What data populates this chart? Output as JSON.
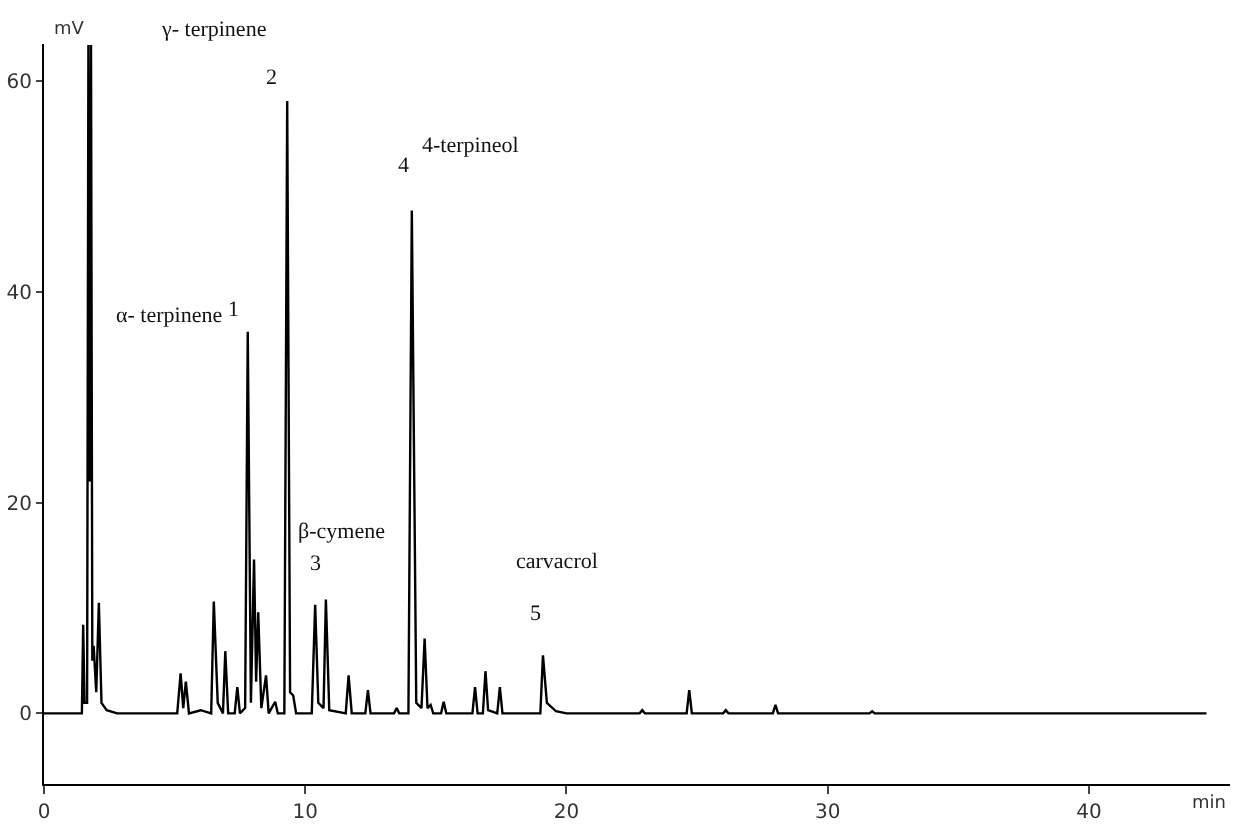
{
  "chart_data": {
    "type": "line",
    "xlabel": "min",
    "ylabel": "mV",
    "x": [
      0,
      1.3,
      1.45,
      1.5,
      1.55,
      1.65,
      1.7,
      1.75,
      1.8,
      1.85,
      1.9,
      2.0,
      2.1,
      2.2,
      2.4,
      2.8,
      5.1,
      5.23,
      5.33,
      5.43,
      5.55,
      6.0,
      6.4,
      6.5,
      6.65,
      6.85,
      6.94,
      7.05,
      7.3,
      7.4,
      7.5,
      7.7,
      7.8,
      7.92,
      8.04,
      8.12,
      8.2,
      8.32,
      8.5,
      8.6,
      8.85,
      8.95,
      9.2,
      9.31,
      9.42,
      9.54,
      9.65,
      10.25,
      10.38,
      10.5,
      10.7,
      10.79,
      10.92,
      11.55,
      11.66,
      11.78,
      12.3,
      12.4,
      12.5,
      13.4,
      13.5,
      13.6,
      13.95,
      14.08,
      14.25,
      14.45,
      14.57,
      14.68,
      14.8,
      14.9,
      15.2,
      15.3,
      15.4,
      16.4,
      16.5,
      16.6,
      16.8,
      16.9,
      17.0,
      17.35,
      17.45,
      17.55,
      19.0,
      19.1,
      19.25,
      19.6,
      20,
      22.8,
      22.9,
      23.0,
      24.6,
      24.7,
      24.8,
      26.0,
      26.1,
      26.2,
      27.9,
      28.0,
      28.1,
      31.6,
      31.7,
      31.8,
      44.5
    ],
    "series": [
      {
        "color": "#000000",
        "values": [
          0,
          0,
          0,
          8.4,
          1,
          1,
          63.4,
          22,
          63.4,
          5,
          6.4,
          2,
          10.5,
          1,
          0.3,
          0,
          0,
          3.8,
          0.5,
          3.0,
          0,
          0.3,
          0,
          10.6,
          1,
          0,
          5.9,
          0,
          0,
          2.5,
          0,
          0.5,
          36.2,
          1,
          14.6,
          3,
          9.6,
          0.5,
          3.6,
          0,
          1.1,
          0,
          0,
          58.1,
          2,
          1.7,
          0,
          0,
          10.3,
          1,
          0.5,
          10.8,
          0.3,
          0,
          3.6,
          0,
          0,
          2.2,
          0,
          0,
          0.5,
          0,
          0,
          47.7,
          1,
          0.5,
          7.1,
          0.5,
          0.8,
          0,
          0,
          1.1,
          0,
          0,
          2.5,
          0,
          0,
          4.0,
          0.3,
          0,
          2.5,
          0,
          0,
          5.5,
          1,
          0.2,
          0,
          0,
          0.3,
          0,
          0,
          2.2,
          0,
          0,
          0.3,
          0,
          0,
          0.8,
          0,
          0,
          0.2,
          0,
          0
        ]
      }
    ],
    "xlim": [
      0,
      45.4
    ],
    "ylim": [
      -6.7,
      63.5
    ],
    "xticks": [
      0,
      10,
      20,
      30,
      40
    ],
    "yticks": [
      0,
      20,
      40,
      60
    ],
    "marker": "none",
    "line_style": "solid",
    "annotations": [
      "γ- terpinene",
      "2",
      "α- terpinene",
      "1",
      "4-terpineol",
      "4",
      "β-cymene",
      "3",
      "carvacrol",
      "5"
    ]
  }
}
